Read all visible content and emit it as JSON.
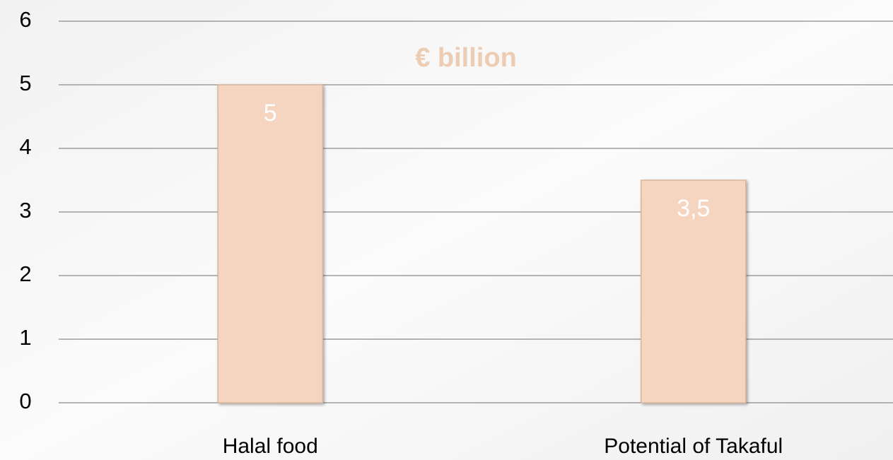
{
  "chart_data": {
    "type": "bar",
    "title": "€ billion",
    "categories": [
      "Halal food",
      "Potential of Takaful"
    ],
    "values": [
      5,
      3.5
    ],
    "value_labels": [
      "5",
      "3,5"
    ],
    "color": "#f5d5bf",
    "ylim": [
      0,
      6
    ],
    "yticks": [
      0,
      1,
      2,
      3,
      4,
      5,
      6
    ],
    "grid": true
  }
}
